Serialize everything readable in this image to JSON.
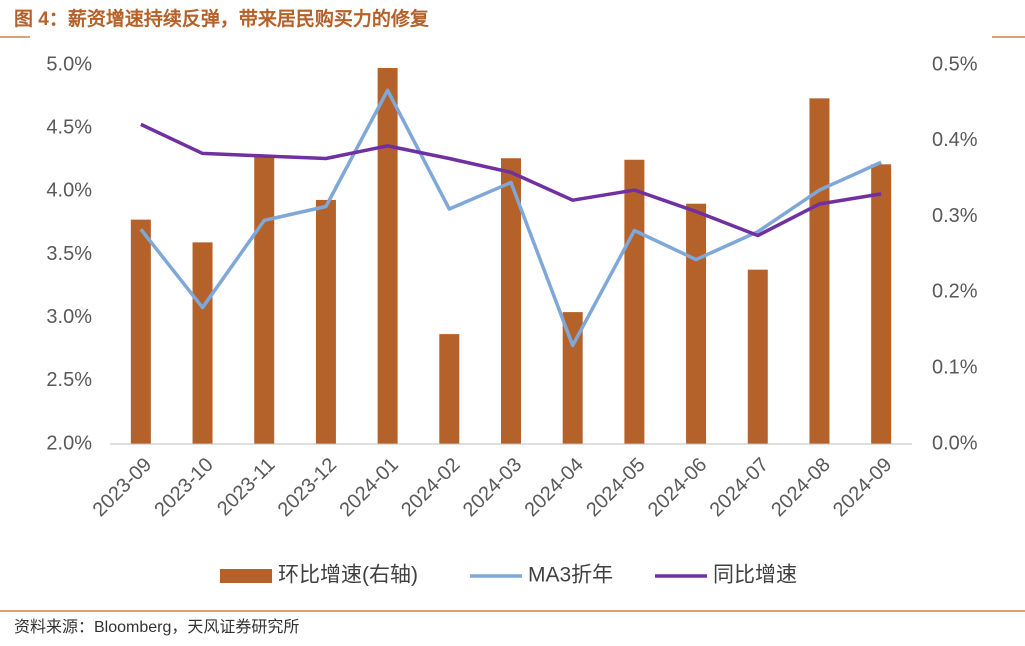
{
  "chart_data": {
    "type": "bar-line",
    "title": "图 4：薪资增速持续反弹，带来居民购买力的修复",
    "source": "资料来源：Bloomberg，天风证券研究所",
    "categories": [
      "2023-09",
      "2023-10",
      "2023-11",
      "2023-12",
      "2024-01",
      "2024-02",
      "2024-03",
      "2024-04",
      "2024-05",
      "2024-06",
      "2024-07",
      "2024-08",
      "2024-09"
    ],
    "series": [
      {
        "name": "环比增速(右轴)",
        "type": "bar",
        "axis": "y2",
        "color": "#b5612a",
        "values": [
          0.296,
          0.266,
          0.379,
          0.322,
          0.496,
          0.145,
          0.377,
          0.174,
          0.375,
          0.317,
          0.23,
          0.456,
          0.369
        ]
      },
      {
        "name": "MA3折年",
        "type": "line",
        "color": "#7fa8d8",
        "values": [
          3.7,
          3.08,
          3.77,
          3.88,
          4.8,
          3.86,
          4.07,
          2.78,
          3.69,
          3.46,
          3.68,
          4.01,
          4.23
        ]
      },
      {
        "name": "同比增速",
        "type": "line",
        "color": "#7030a0",
        "values": [
          4.53,
          4.3,
          4.28,
          4.26,
          4.36,
          4.26,
          4.15,
          3.93,
          4.01,
          3.84,
          3.65,
          3.9,
          3.98
        ]
      }
    ],
    "ylim": [
      2.0,
      5.0
    ],
    "yticks": [
      {
        "value": 2.0,
        "label": "2.0%"
      },
      {
        "value": 2.5,
        "label": "2.5%"
      },
      {
        "value": 3.0,
        "label": "3.0%"
      },
      {
        "value": 3.5,
        "label": "3.5%"
      },
      {
        "value": 4.0,
        "label": "4.0%"
      },
      {
        "value": 4.5,
        "label": "4.5%"
      },
      {
        "value": 5.0,
        "label": "5.0%"
      }
    ],
    "y2lim": [
      0.0,
      0.5
    ],
    "y2ticks": [
      {
        "value": 0.0,
        "label": "0.0%"
      },
      {
        "value": 0.1,
        "label": "0.1%"
      },
      {
        "value": 0.2,
        "label": "0.2%"
      },
      {
        "value": 0.3,
        "label": "0.3%"
      },
      {
        "value": 0.4,
        "label": "0.4%"
      },
      {
        "value": 0.5,
        "label": "0.5%"
      }
    ],
    "legend": "bottom"
  }
}
